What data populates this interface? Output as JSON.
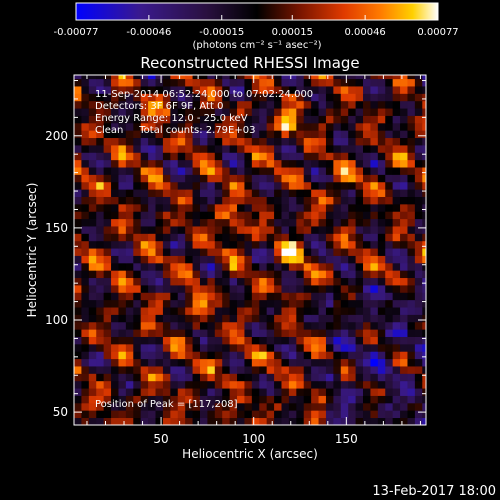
{
  "chart_data": {
    "type": "heatmap",
    "title": "Reconstructed RHESSI Image",
    "xlabel": "Heliocentric X (arcsec)",
    "ylabel": "Heliocentric Y (arcsec)",
    "xlim": [
      3,
      193
    ],
    "ylim": [
      43,
      233
    ],
    "xticks": [
      50,
      100,
      150
    ],
    "yticks": [
      50,
      100,
      150,
      200
    ],
    "colorbar": {
      "min": -0.00077,
      "max": 0.00077,
      "tick_values": [
        -0.00077,
        -0.00046,
        -0.00015,
        0.00015,
        0.00046,
        0.00077
      ],
      "tick_labels": [
        "-0.00077",
        "-0.00046",
        "-0.00015",
        "0.00015",
        "0.00046",
        "0.00077"
      ],
      "unit_label": "(photons cm⁻² s⁻¹ asec⁻²)",
      "colors": [
        "#0000ff",
        "#3a1a8c",
        "#2a1040",
        "#000000",
        "#7a1500",
        "#e03a00",
        "#ff7a00",
        "#ffd000",
        "#ffffff"
      ]
    },
    "annotations": [
      "11-Sep-2014 06:52:24.000 to 07:02:24.000",
      "Detectors: 3F 6F 9F, Att 0",
      "Energy Range: 12.0 - 25.0 keV",
      "Clean     Total counts: 2.79E+03",
      "Position of Peak = [117,208]"
    ],
    "peak": {
      "x": 117,
      "y": 208
    },
    "bright_sources": [
      {
        "x": 117,
        "y": 208,
        "value": 0.00077
      },
      {
        "x": 120,
        "y": 135,
        "value": 0.00068
      },
      {
        "x": 68,
        "y": 110,
        "value": 0.0007
      },
      {
        "x": 90,
        "y": 148,
        "value": 0.0006
      },
      {
        "x": 87,
        "y": 160,
        "value": 0.00052
      },
      {
        "x": 50,
        "y": 212,
        "value": 0.00048
      },
      {
        "x": 150,
        "y": 175,
        "value": 0.00045
      }
    ]
  },
  "footer": {
    "date": "13-Feb-2017 18:00"
  }
}
